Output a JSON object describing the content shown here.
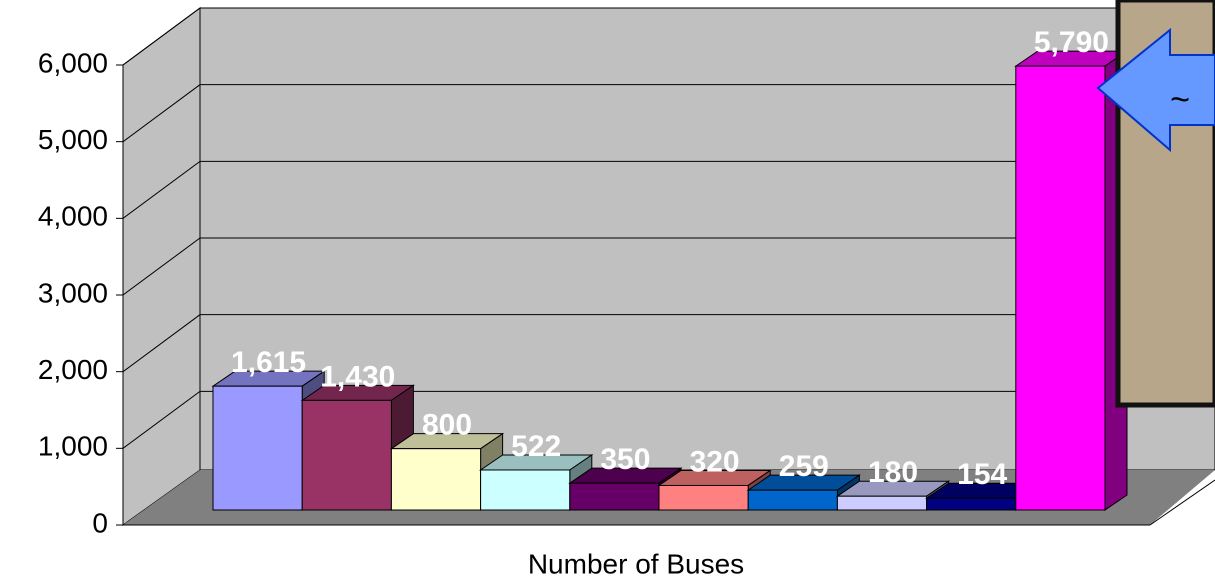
{
  "chart_data": {
    "type": "bar3d",
    "x_label": "Number of Buses",
    "categories": [
      null,
      null,
      null,
      null,
      null,
      null,
      null,
      null,
      null,
      null
    ],
    "values": [
      1615,
      1430,
      800,
      522,
      350,
      320,
      259,
      180,
      154,
      5790
    ],
    "value_labels": [
      "1,615",
      "1,430",
      "800",
      "522",
      "350",
      "320",
      "259",
      "180",
      "154",
      "5,790"
    ],
    "colors": [
      "#9999ff",
      "#993366",
      "#ffffcc",
      "#ccffff",
      "#660066",
      "#ff8080",
      "#0066cc",
      "#ccccff",
      "#000080",
      "#ff00ff"
    ],
    "ylim": [
      0,
      6000
    ],
    "yticks": [
      0,
      {
        "value": 1000,
        "label": "1,000"
      },
      {
        "value": 2000,
        "label": "2,000"
      },
      {
        "value": 3000,
        "label": "3,000"
      },
      {
        "value": 4000,
        "label": "4,000"
      },
      {
        "value": 5000,
        "label": "5,000"
      },
      {
        "value": 6000,
        "label": "6,000"
      }
    ],
    "grid": true,
    "annotation": "~"
  }
}
